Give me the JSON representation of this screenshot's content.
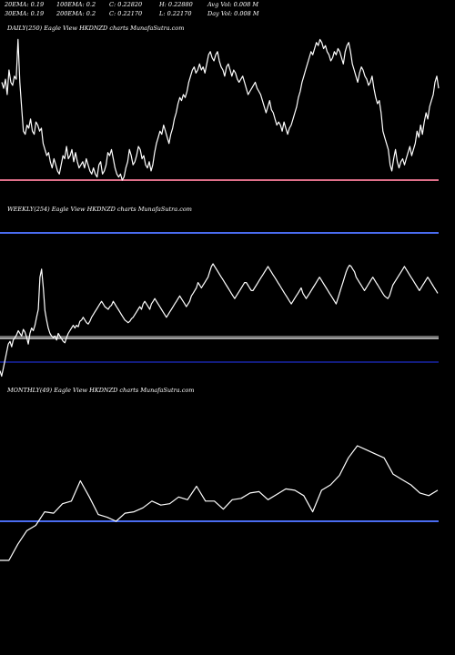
{
  "header": {
    "row1": [
      "20EMA: 0.19",
      "100EMA: 0.2",
      "C: 0.22820",
      "H: 0.22880",
      "Avg Vol: 0.008  M"
    ],
    "row2": [
      "30EMA: 0.19",
      "200EMA: 0.2",
      "C: 0.22170",
      "L: 0.22170",
      "Day Vol: 0.008  M"
    ]
  },
  "panels": {
    "daily": {
      "caption": "DAILY(250) Eagle   View  HKDNZD charts MunafaSutra.com"
    },
    "weekly": {
      "caption": "WEEKLY(254) Eagle   View  HKDNZD charts MunafaSutra.com"
    },
    "monthly": {
      "caption": "MONTHLY(49) Eagle   View  HKDNZD charts MunafaSutra.com"
    }
  },
  "colors": {
    "background": "#000000",
    "price": "#ffffff",
    "pink": "#e0708a",
    "blue": "#4a6cf0",
    "navy": "#1c2cc8",
    "grey": "#aaaaaa"
  },
  "chart_data": [
    {
      "type": "line",
      "title": "DAILY(250) Eagle   View  HKDNZD charts MunafaSutra.com",
      "series": [
        {
          "values": [
            0.6,
            0.58,
            0.61,
            0.56,
            0.64,
            0.6,
            0.59,
            0.62,
            0.61,
            0.74,
            0.6,
            0.52,
            0.44,
            0.43,
            0.46,
            0.45,
            0.48,
            0.44,
            0.43,
            0.47,
            0.46,
            0.44,
            0.45,
            0.4,
            0.38,
            0.36,
            0.37,
            0.34,
            0.32,
            0.35,
            0.33,
            0.31,
            0.3,
            0.33,
            0.36,
            0.35,
            0.39,
            0.35,
            0.36,
            0.38,
            0.34,
            0.37,
            0.34,
            0.32,
            0.33,
            0.34,
            0.32,
            0.35,
            0.33,
            0.31,
            0.3,
            0.32,
            0.3,
            0.29,
            0.33,
            0.34,
            0.3,
            0.31,
            0.33,
            0.37,
            0.36,
            0.38,
            0.35,
            0.32,
            0.3,
            0.29,
            0.3,
            0.28,
            0.29,
            0.32,
            0.34,
            0.38,
            0.36,
            0.33,
            0.34,
            0.36,
            0.39,
            0.38,
            0.35,
            0.36,
            0.33,
            0.32,
            0.34,
            0.31,
            0.33,
            0.37,
            0.4,
            0.42,
            0.44,
            0.43,
            0.46,
            0.44,
            0.42,
            0.4,
            0.43,
            0.45,
            0.48,
            0.5,
            0.53,
            0.55,
            0.54,
            0.56,
            0.55,
            0.57,
            0.6,
            0.62,
            0.64,
            0.65,
            0.63,
            0.64,
            0.66,
            0.64,
            0.65,
            0.63,
            0.66,
            0.69,
            0.7,
            0.68,
            0.67,
            0.69,
            0.7,
            0.67,
            0.65,
            0.64,
            0.62,
            0.65,
            0.66,
            0.64,
            0.62,
            0.64,
            0.63,
            0.61,
            0.6,
            0.61,
            0.62,
            0.6,
            0.58,
            0.56,
            0.57,
            0.58,
            0.59,
            0.6,
            0.58,
            0.57,
            0.56,
            0.54,
            0.52,
            0.5,
            0.52,
            0.54,
            0.51,
            0.5,
            0.48,
            0.46,
            0.47,
            0.46,
            0.44,
            0.47,
            0.45,
            0.43,
            0.45,
            0.46,
            0.48,
            0.5,
            0.52,
            0.55,
            0.57,
            0.6,
            0.62,
            0.64,
            0.66,
            0.68,
            0.7,
            0.69,
            0.71,
            0.73,
            0.72,
            0.74,
            0.73,
            0.71,
            0.72,
            0.7,
            0.69,
            0.67,
            0.68,
            0.7,
            0.69,
            0.71,
            0.7,
            0.68,
            0.66,
            0.7,
            0.72,
            0.73,
            0.7,
            0.66,
            0.64,
            0.62,
            0.6,
            0.63,
            0.65,
            0.64,
            0.62,
            0.61,
            0.59,
            0.6,
            0.62,
            0.58,
            0.55,
            0.53,
            0.54,
            0.5,
            0.44,
            0.42,
            0.4,
            0.38,
            0.33,
            0.31,
            0.35,
            0.38,
            0.34,
            0.32,
            0.34,
            0.35,
            0.33,
            0.35,
            0.37,
            0.39,
            0.36,
            0.38,
            0.4,
            0.44,
            0.42,
            0.46,
            0.43,
            0.47,
            0.5,
            0.48,
            0.52,
            0.54,
            0.56,
            0.6,
            0.62,
            0.58
          ]
        }
      ],
      "reference_lines": [
        {
          "value": 0.0,
          "color": "#e0708a"
        }
      ],
      "ylim": [
        0,
        1
      ]
    },
    {
      "type": "line",
      "title": "WEEKLY(254) Eagle   View  HKDNZD charts MunafaSutra.com",
      "series": [
        {
          "values": [
            0.1,
            0.06,
            0.12,
            0.18,
            0.24,
            0.3,
            0.32,
            0.28,
            0.33,
            0.35,
            0.37,
            0.4,
            0.38,
            0.36,
            0.41,
            0.39,
            0.35,
            0.3,
            0.38,
            0.42,
            0.4,
            0.44,
            0.5,
            0.56,
            0.8,
            0.86,
            0.72,
            0.55,
            0.48,
            0.42,
            0.38,
            0.36,
            0.35,
            0.36,
            0.33,
            0.38,
            0.36,
            0.34,
            0.32,
            0.31,
            0.35,
            0.38,
            0.4,
            0.42,
            0.44,
            0.42,
            0.44,
            0.43,
            0.47,
            0.48,
            0.5,
            0.48,
            0.46,
            0.45,
            0.47,
            0.5,
            0.52,
            0.54,
            0.56,
            0.58,
            0.6,
            0.62,
            0.6,
            0.58,
            0.57,
            0.56,
            0.58,
            0.59,
            0.62,
            0.6,
            0.58,
            0.56,
            0.54,
            0.52,
            0.5,
            0.48,
            0.47,
            0.46,
            0.47,
            0.49,
            0.5,
            0.52,
            0.54,
            0.56,
            0.58,
            0.56,
            0.6,
            0.62,
            0.6,
            0.58,
            0.56,
            0.6,
            0.62,
            0.64,
            0.62,
            0.6,
            0.58,
            0.56,
            0.54,
            0.52,
            0.5,
            0.52,
            0.54,
            0.56,
            0.58,
            0.6,
            0.62,
            0.64,
            0.66,
            0.64,
            0.62,
            0.6,
            0.58,
            0.6,
            0.62,
            0.66,
            0.68,
            0.7,
            0.72,
            0.76,
            0.74,
            0.72,
            0.74,
            0.76,
            0.78,
            0.8,
            0.84,
            0.88,
            0.9,
            0.88,
            0.86,
            0.84,
            0.82,
            0.8,
            0.78,
            0.76,
            0.74,
            0.72,
            0.7,
            0.68,
            0.66,
            0.64,
            0.66,
            0.68,
            0.7,
            0.72,
            0.74,
            0.76,
            0.76,
            0.74,
            0.72,
            0.7,
            0.7,
            0.72,
            0.74,
            0.76,
            0.78,
            0.8,
            0.82,
            0.84,
            0.86,
            0.88,
            0.86,
            0.84,
            0.82,
            0.8,
            0.78,
            0.76,
            0.74,
            0.72,
            0.7,
            0.68,
            0.66,
            0.64,
            0.62,
            0.6,
            0.62,
            0.64,
            0.66,
            0.68,
            0.7,
            0.72,
            0.68,
            0.66,
            0.64,
            0.66,
            0.68,
            0.7,
            0.72,
            0.74,
            0.76,
            0.78,
            0.8,
            0.78,
            0.76,
            0.74,
            0.72,
            0.7,
            0.68,
            0.66,
            0.64,
            0.62,
            0.6,
            0.64,
            0.68,
            0.72,
            0.76,
            0.8,
            0.84,
            0.87,
            0.89,
            0.88,
            0.86,
            0.84,
            0.8,
            0.78,
            0.76,
            0.74,
            0.72,
            0.7,
            0.72,
            0.74,
            0.76,
            0.78,
            0.8,
            0.78,
            0.76,
            0.74,
            0.72,
            0.7,
            0.68,
            0.66,
            0.65,
            0.64,
            0.66,
            0.7,
            0.74,
            0.76,
            0.78,
            0.8,
            0.82,
            0.84,
            0.86,
            0.88,
            0.86,
            0.84,
            0.82,
            0.8,
            0.78,
            0.76,
            0.74,
            0.72,
            0.7,
            0.72,
            0.74,
            0.76,
            0.78,
            0.8,
            0.78,
            0.76,
            0.74,
            0.72,
            0.7,
            0.68
          ]
        }
      ],
      "reference_lines": [
        {
          "value": 1.25,
          "color": "#4a6cf0"
        },
        {
          "value": 0.36,
          "color": "#aaaaaa"
        },
        {
          "value": 0.35,
          "color": "#ffffff"
        },
        {
          "value": 0.05,
          "color": "#1c2cc8"
        }
      ],
      "ylim": [
        0,
        1
      ]
    },
    {
      "type": "line",
      "title": "MONTHLY(49) Eagle   View  HKDNZD charts MunafaSutra.com",
      "series": [
        {
          "values": [
            0.0,
            0.0,
            0.12,
            0.22,
            0.26,
            0.36,
            0.35,
            0.42,
            0.44,
            0.59,
            0.47,
            0.34,
            0.32,
            0.29,
            0.35,
            0.36,
            0.39,
            0.44,
            0.41,
            0.42,
            0.47,
            0.45,
            0.55,
            0.44,
            0.44,
            0.38,
            0.45,
            0.46,
            0.5,
            0.51,
            0.45,
            0.49,
            0.53,
            0.52,
            0.48,
            0.36,
            0.52,
            0.56,
            0.63,
            0.76,
            0.85,
            0.82,
            0.79,
            0.76,
            0.64,
            0.6,
            0.56,
            0.5,
            0.48,
            0.52
          ]
        }
      ],
      "reference_lines": [
        {
          "value": 0.33,
          "color": "#4a6cf0"
        }
      ],
      "ylim": [
        0,
        1
      ]
    }
  ]
}
